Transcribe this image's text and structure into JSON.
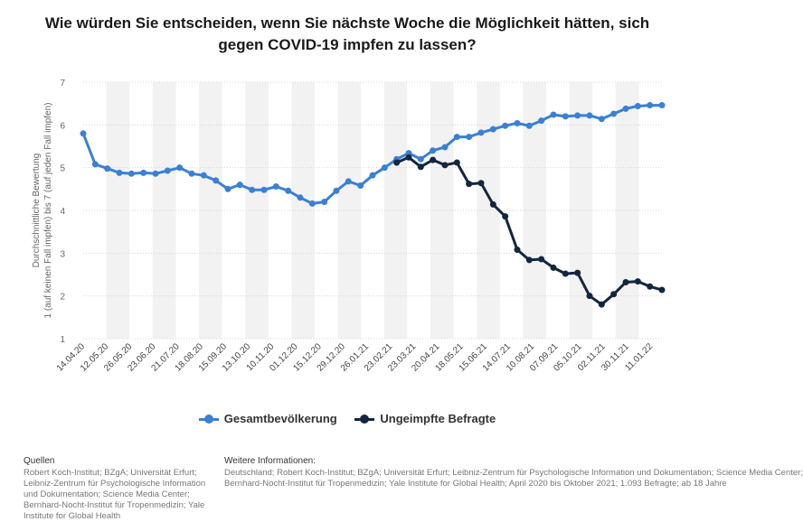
{
  "title": "Wie würden Sie entscheiden, wenn Sie nächste Woche die Möglichkeit hätten, sich gegen COVID-19 impfen zu lassen?",
  "chart_data": {
    "type": "line",
    "title": "Wie würden Sie entscheiden, wenn Sie nächste Woche die Möglichkeit hätten, sich gegen COVID-19 impfen zu lassen?",
    "ylabel_line1": "Durchschnittliche Bewertung",
    "ylabel_line2": "1 (auf keinen Fall impfen) bis 7 (auf jeden Fall impfen)",
    "ylim": [
      1,
      7
    ],
    "yticks": [
      "1",
      "2",
      "3",
      "4",
      "5",
      "6",
      "7"
    ],
    "xtick_labels": [
      "14.04.20",
      "12.05.20",
      "26.05.20",
      "23.06.20",
      "21.07.20",
      "18.08.20",
      "15.09.20",
      "13.10.20",
      "10.11.20",
      "01.12.20",
      "15.12.20",
      "29.12.20",
      "26.01.21",
      "23.02.21",
      "23.03.21",
      "20.04.21",
      "18.05.21",
      "15.06.21",
      "14.07.21",
      "10.08.21",
      "07.09.21",
      "05.10.21",
      "02.11.21",
      "30.11.21",
      "11.01.22"
    ],
    "series": [
      {
        "name": "Gesamtbevölkerung",
        "color": "#3a80d5",
        "start_index": 0,
        "values": [
          5.8,
          5.08,
          4.98,
          4.88,
          4.86,
          4.88,
          4.86,
          4.93,
          5.0,
          4.86,
          4.82,
          4.7,
          4.5,
          4.6,
          4.48,
          4.48,
          4.56,
          4.46,
          4.3,
          4.16,
          4.2,
          4.46,
          4.68,
          4.58,
          4.82,
          5.0,
          5.2,
          5.34,
          5.2,
          5.4,
          5.48,
          5.72,
          5.72,
          5.82,
          5.9,
          5.98,
          6.04,
          5.98,
          6.1,
          6.24,
          6.2,
          6.22,
          6.22,
          6.14,
          6.26,
          6.38,
          6.44,
          6.46,
          6.46
        ]
      },
      {
        "name": "Ungeimpfte Befragte",
        "color": "#13263f",
        "start_index": 26,
        "values": [
          5.12,
          5.24,
          5.02,
          5.18,
          5.06,
          5.12,
          4.62,
          4.64,
          4.14,
          3.86,
          3.08,
          2.84,
          2.86,
          2.66,
          2.52,
          2.54,
          2.0,
          1.8,
          2.04,
          2.32,
          2.34,
          2.22,
          2.14
        ]
      }
    ],
    "legend": [
      "Gesamtbevölkerung",
      "Ungeimpfte Befragte"
    ],
    "legend_position": "bottom"
  },
  "footer": {
    "sources_heading": "Quellen",
    "sources_text": "Robert Koch-Institut; BZgA; Universität Erfurt; Leibniz-Zentrum für Psychologische Information und Dokumentation; Science Media Center; Bernhard-Nocht-Institut für Tropenmedizin; Yale Institute for Global Health",
    "info_heading": "Weitere Informationen:",
    "info_line1": "Deutschland; Robert Koch-Institut; BZgA; Universität Erfurt; Leibniz-Zentrum für Psychologische Information und Dokumentation; Science Media Center;",
    "info_line2": "Bernhard-Nocht-Institut für Tropenmedizin; Yale Institute for Global Health; April 2020 bis Oktober 2021; 1.093 Befragte; ab 18 Jahre"
  }
}
